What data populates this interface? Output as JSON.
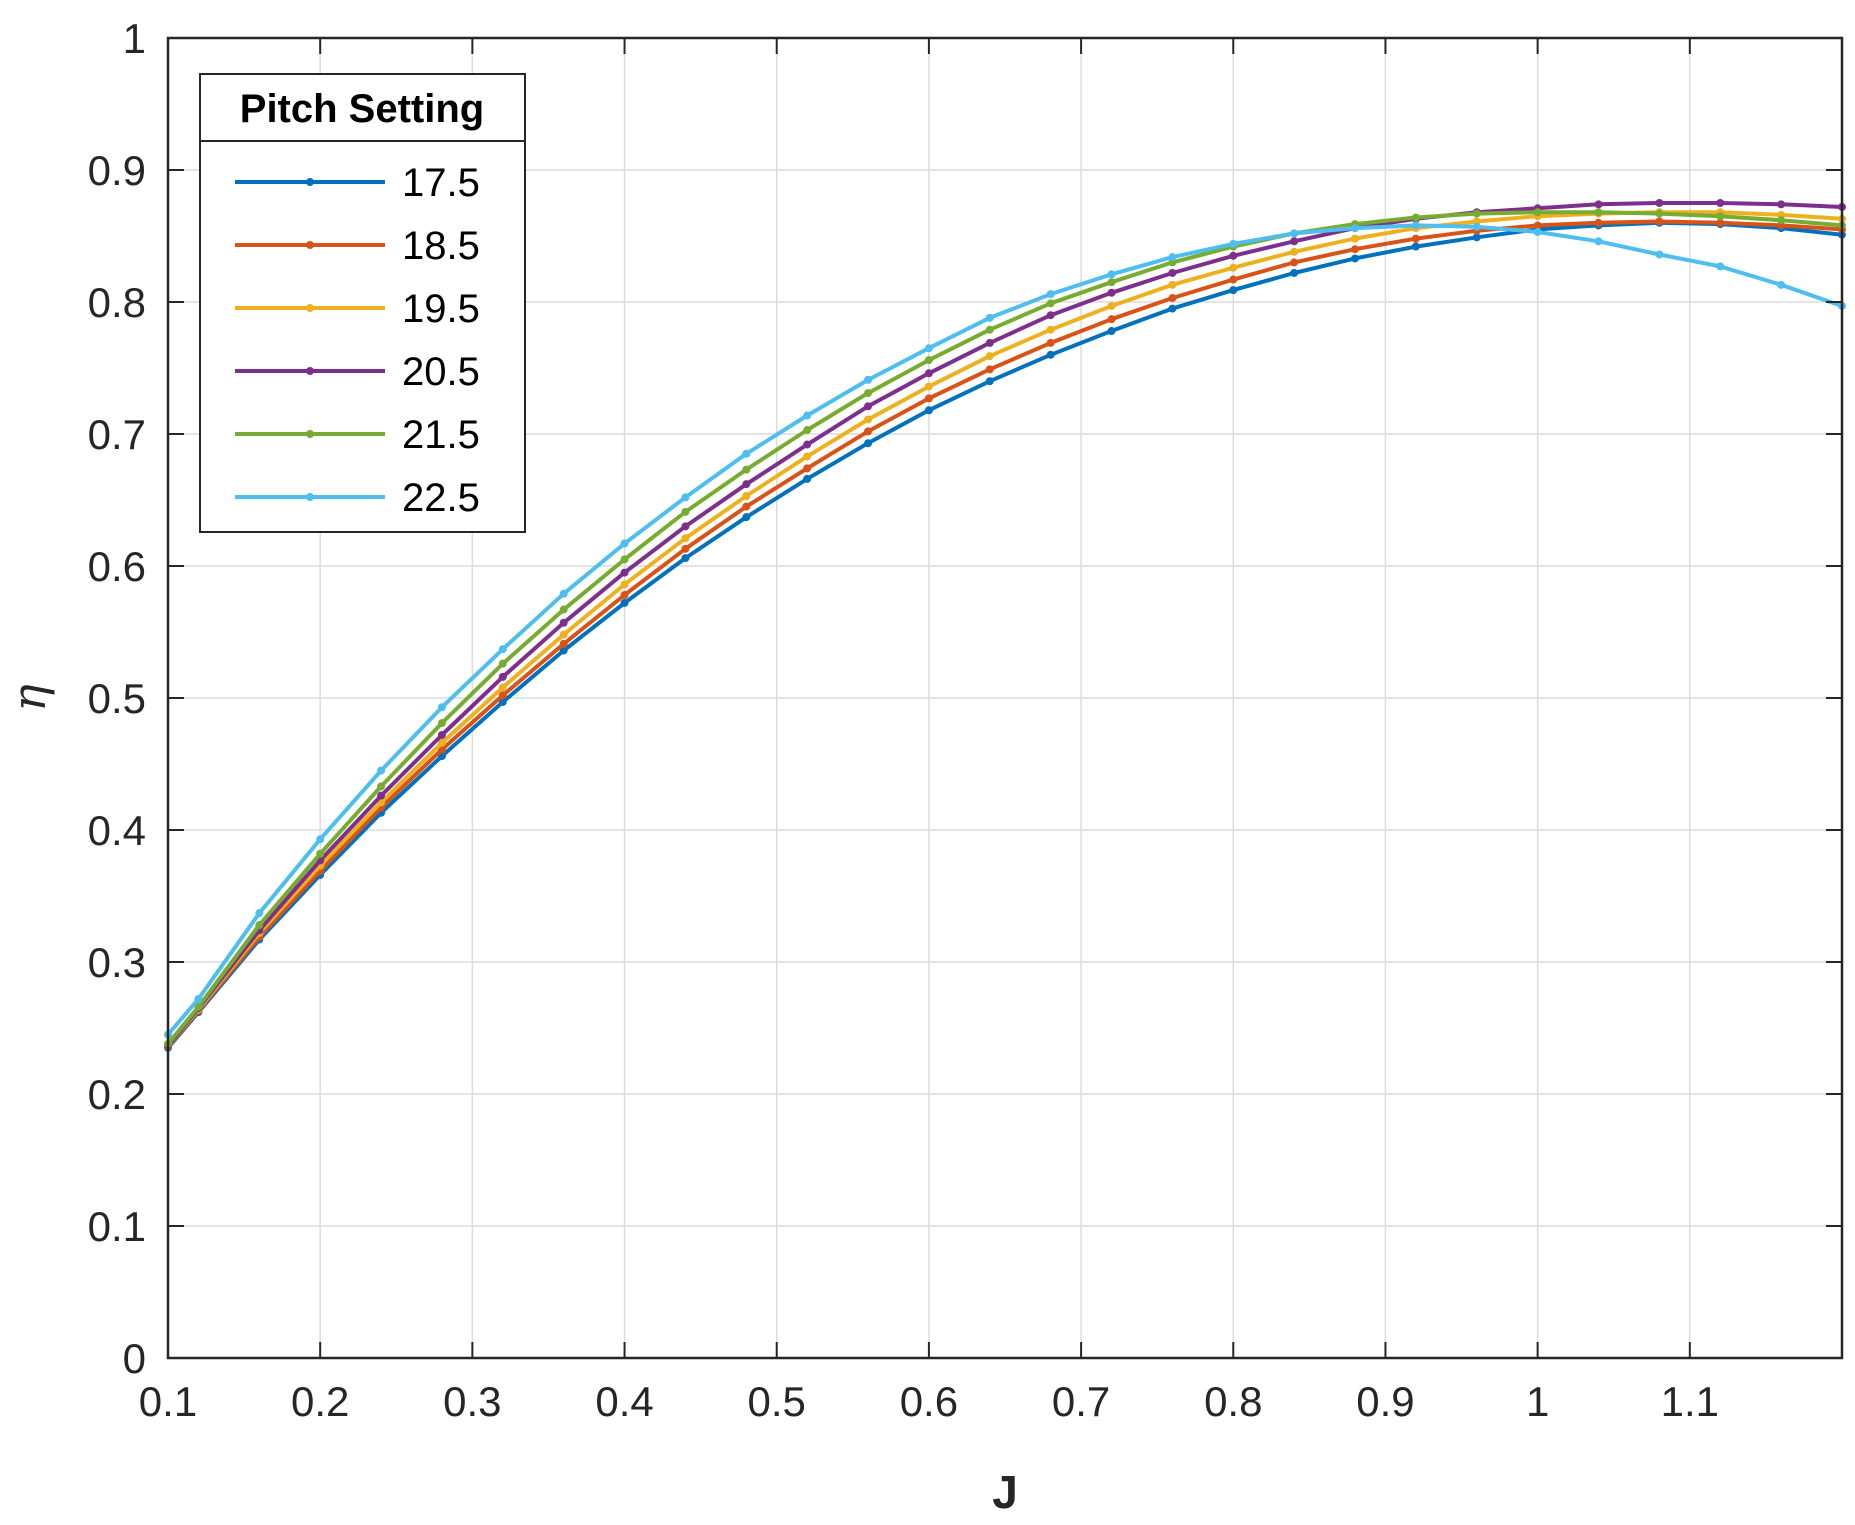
{
  "chart_data": {
    "type": "line",
    "title": "",
    "xlabel": "J",
    "ylabel": "η",
    "xlim": [
      0.1,
      1.2
    ],
    "ylim": [
      0,
      1
    ],
    "xticks": [
      0.1,
      0.2,
      0.3,
      0.4,
      0.5,
      0.6,
      0.7,
      0.8,
      0.9,
      1,
      1.1
    ],
    "xtick_labels": [
      "0.1",
      "0.2",
      "0.3",
      "0.4",
      "0.5",
      "0.6",
      "0.7",
      "0.8",
      "0.9",
      "1",
      "1.1"
    ],
    "yticks": [
      0,
      0.1,
      0.2,
      0.3,
      0.4,
      0.5,
      0.6,
      0.7,
      0.8,
      0.9,
      1
    ],
    "ytick_labels": [
      "0",
      "0.1",
      "0.2",
      "0.3",
      "0.4",
      "0.5",
      "0.6",
      "0.7",
      "0.8",
      "0.9",
      "1"
    ],
    "grid": true,
    "legend": {
      "title": "Pitch Setting",
      "placement": "top-left"
    },
    "x": [
      0.1,
      0.12,
      0.16,
      0.2,
      0.24,
      0.28,
      0.32,
      0.36,
      0.4,
      0.44,
      0.48,
      0.52,
      0.56,
      0.6,
      0.64,
      0.68,
      0.72,
      0.76,
      0.8,
      0.84,
      0.88,
      0.92,
      0.96,
      1.0,
      1.04,
      1.08,
      1.12,
      1.16,
      1.2
    ],
    "series": [
      {
        "name": "17.5",
        "color": "#0072BD",
        "values": [
          0.235,
          0.262,
          0.317,
          0.366,
          0.413,
          0.456,
          0.497,
          0.536,
          0.572,
          0.606,
          0.637,
          0.666,
          0.693,
          0.718,
          0.74,
          0.76,
          0.778,
          0.795,
          0.809,
          0.822,
          0.833,
          0.842,
          0.849,
          0.855,
          0.858,
          0.86,
          0.859,
          0.856,
          0.851
        ]
      },
      {
        "name": "18.5",
        "color": "#D95319",
        "values": [
          0.236,
          0.263,
          0.319,
          0.369,
          0.417,
          0.461,
          0.502,
          0.541,
          0.578,
          0.613,
          0.645,
          0.674,
          0.702,
          0.727,
          0.749,
          0.769,
          0.787,
          0.803,
          0.817,
          0.83,
          0.84,
          0.848,
          0.854,
          0.858,
          0.86,
          0.861,
          0.86,
          0.858,
          0.855
        ]
      },
      {
        "name": "19.5",
        "color": "#EDB120",
        "values": [
          0.237,
          0.264,
          0.322,
          0.373,
          0.421,
          0.466,
          0.508,
          0.548,
          0.586,
          0.621,
          0.653,
          0.683,
          0.711,
          0.736,
          0.759,
          0.779,
          0.797,
          0.813,
          0.826,
          0.838,
          0.848,
          0.856,
          0.861,
          0.865,
          0.867,
          0.868,
          0.868,
          0.866,
          0.863
        ]
      },
      {
        "name": "20.5",
        "color": "#7E2F8E",
        "values": [
          0.237,
          0.265,
          0.324,
          0.377,
          0.426,
          0.472,
          0.516,
          0.557,
          0.595,
          0.63,
          0.662,
          0.692,
          0.721,
          0.746,
          0.769,
          0.79,
          0.807,
          0.822,
          0.835,
          0.846,
          0.856,
          0.863,
          0.868,
          0.871,
          0.874,
          0.875,
          0.875,
          0.874,
          0.872
        ]
      },
      {
        "name": "21.5",
        "color": "#77AC30",
        "values": [
          0.238,
          0.266,
          0.328,
          0.382,
          0.433,
          0.481,
          0.526,
          0.567,
          0.605,
          0.641,
          0.673,
          0.703,
          0.731,
          0.756,
          0.779,
          0.799,
          0.815,
          0.83,
          0.842,
          0.852,
          0.859,
          0.864,
          0.867,
          0.868,
          0.868,
          0.867,
          0.865,
          0.862,
          0.858
        ]
      },
      {
        "name": "22.5",
        "color": "#4DBEEE",
        "values": [
          0.245,
          0.272,
          0.337,
          0.393,
          0.445,
          0.493,
          0.537,
          0.579,
          0.617,
          0.652,
          0.685,
          0.714,
          0.741,
          0.765,
          0.788,
          0.806,
          0.821,
          0.834,
          0.844,
          0.852,
          0.856,
          0.858,
          0.857,
          0.853,
          0.846,
          0.836,
          0.827,
          0.813,
          0.797
        ]
      }
    ]
  }
}
